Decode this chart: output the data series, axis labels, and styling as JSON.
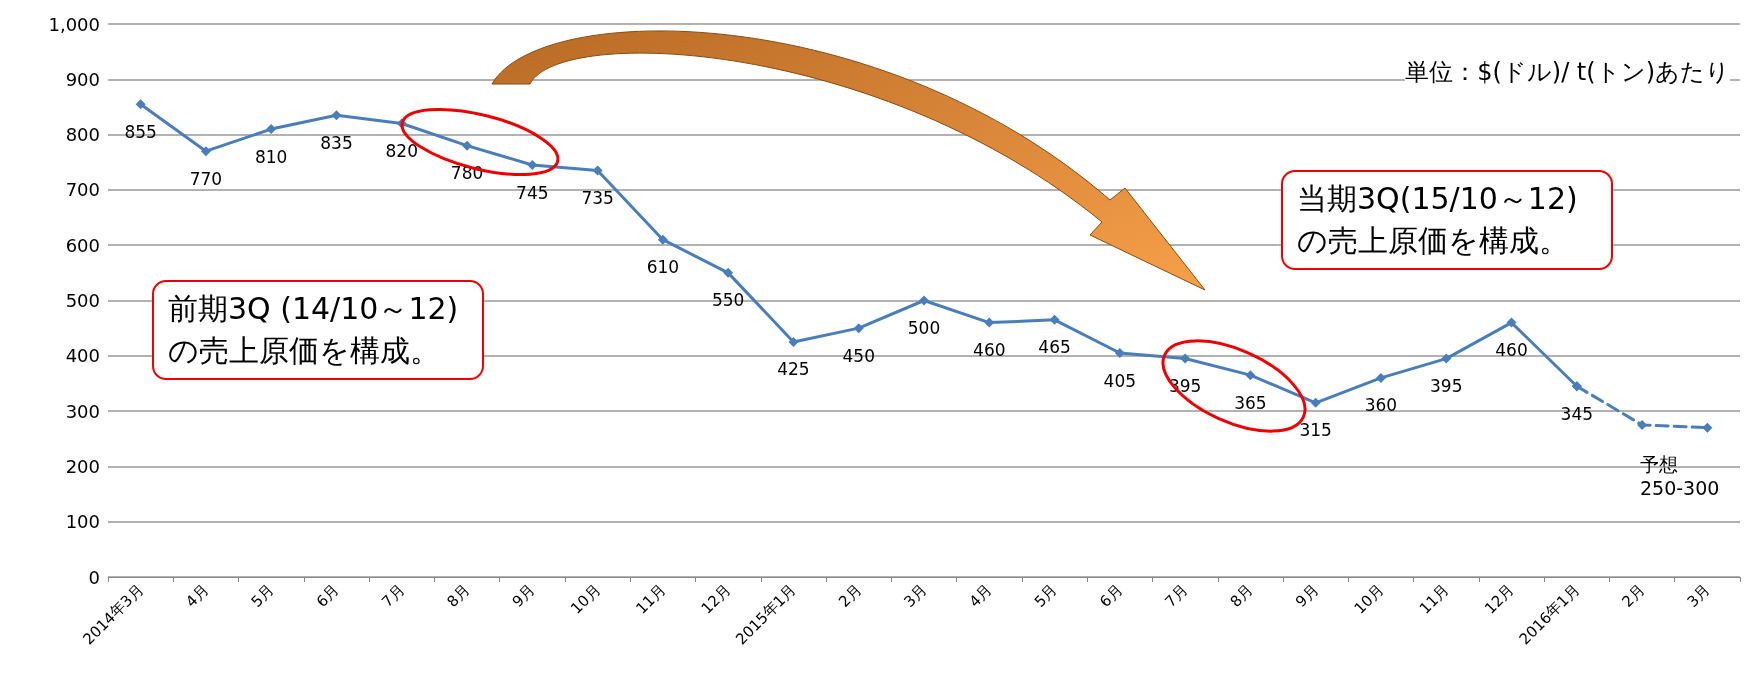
{
  "chart_data": {
    "type": "line",
    "categories": [
      "2014年3月",
      "4月",
      "5月",
      "6月",
      "7月",
      "8月",
      "9月",
      "10月",
      "11月",
      "12月",
      "2015年1月",
      "2月",
      "3月",
      "4月",
      "5月",
      "6月",
      "7月",
      "8月",
      "9月",
      "10月",
      "11月",
      "12月",
      "2016年1月",
      "2月",
      "3月"
    ],
    "series": [
      {
        "color": "#4a7ebb",
        "line_style": "solid",
        "values": [
          855,
          770,
          810,
          835,
          820,
          780,
          745,
          735,
          610,
          550,
          425,
          450,
          500,
          460,
          465,
          405,
          395,
          365,
          315,
          360,
          395,
          460,
          345,
          null,
          null
        ],
        "value_labels": [
          "855",
          "770",
          "810",
          "835",
          "820",
          "780",
          "745",
          "735",
          "610",
          "550",
          "425",
          "450",
          "500",
          "460",
          "465",
          "405",
          "395",
          "365",
          "315",
          "360",
          "395",
          "460",
          "345",
          null,
          null
        ]
      },
      {
        "color": "#4a7ebb",
        "line_style": "dashed",
        "values": [
          null,
          null,
          null,
          null,
          null,
          null,
          null,
          null,
          null,
          null,
          null,
          null,
          null,
          null,
          null,
          null,
          null,
          null,
          null,
          null,
          null,
          null,
          345,
          275,
          270
        ],
        "value_labels": [
          null,
          null,
          null,
          null,
          null,
          null,
          null,
          null,
          null,
          null,
          null,
          null,
          null,
          null,
          null,
          null,
          null,
          null,
          null,
          null,
          null,
          null,
          null,
          null,
          null
        ]
      }
    ],
    "ylim": [
      0,
      1000
    ],
    "yticks": [
      0,
      100,
      200,
      300,
      400,
      500,
      600,
      700,
      800,
      900,
      {
        "value": 1000,
        "label": "1,000"
      }
    ],
    "grid": "y",
    "marker": "diamond",
    "annotations": [
      "単位：$(ドル)/ t(トン)あたり",
      "前期3Q (14/10～12)の売上原価を構成。",
      "当期3Q(15/10～12)の売上原価を構成。",
      "予想\n250-300"
    ]
  }
}
